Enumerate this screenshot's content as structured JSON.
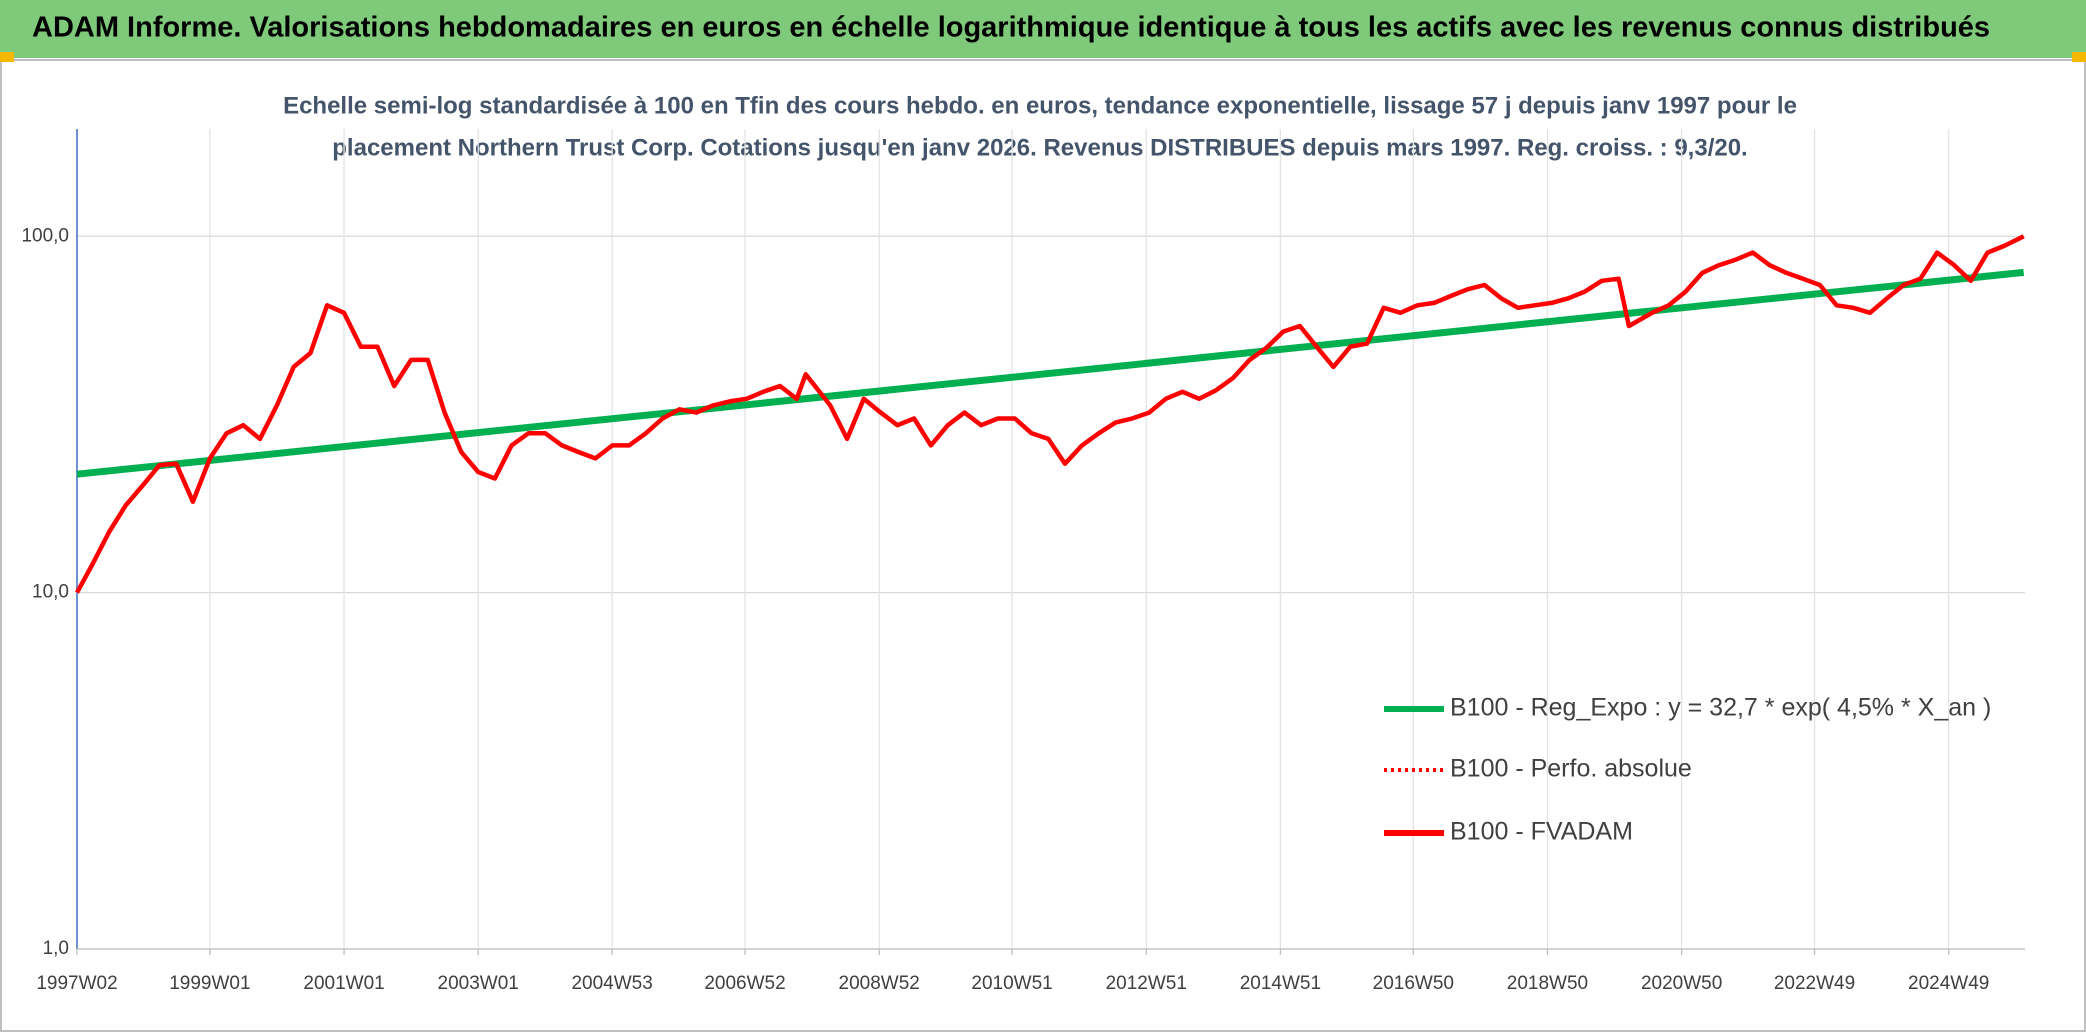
{
  "chart_data": {
    "type": "line",
    "title": "ADAM Informe. Valorisations hebdomadaires en euros en échelle logarithmique identique à tous les actifs avec les revenus connus distribués",
    "subtitle": [
      "Echelle semi-log standardisée à 100 en Tfin des cours hebdo. en euros, tendance exponentielle, lissage 57 j depuis janv 1997 pour le",
      "placement Northern Trust Corp. Cotations jusqu'en janv 2026. Revenus DISTRIBUES depuis mars 1997. Reg. croiss. : 9,3/20."
    ],
    "xlim": [
      "1997W02",
      "2026W04"
    ],
    "xticks": [
      "1997W02",
      "1999W01",
      "2001W01",
      "2003W01",
      "2004W53",
      "2006W52",
      "2008W52",
      "2010W51",
      "2012W51",
      "2014W51",
      "2016W50",
      "2018W50",
      "2020W50",
      "2022W49",
      "2024W49"
    ],
    "ylim": [
      1,
      200
    ],
    "log_y": true,
    "grid": true,
    "yticks": [
      {
        "value": 1,
        "label": "1,0"
      },
      {
        "value": 10,
        "label": "10,0"
      },
      {
        "value": 100,
        "label": "100,0"
      }
    ],
    "legend": "right",
    "series": [
      {
        "name": "B100 - Reg_Expo : y = 32,7 * exp( 4,5% *  X_an )",
        "color": "#00b050",
        "style": "solid",
        "x": [
          "1997W02",
          "2026W03"
        ],
        "values": [
          21.5,
          79.2
        ]
      },
      {
        "name": "B100 - Perfo. absolue",
        "color": "#ff0000",
        "style": "dotted",
        "x": [],
        "values": []
      },
      {
        "name": "B100 - FVADAM",
        "color": "#ff0000",
        "style": "solid",
        "x": [
          "1997W02",
          "1997W14",
          "1997W27",
          "1997W40",
          "1998W01",
          "1998W14",
          "1998W27",
          "1998W40",
          "1999W01",
          "1999W14",
          "1999W27",
          "1999W40",
          "2000W01",
          "2000W14",
          "2000W27",
          "2000W40",
          "2001W01",
          "2001W14",
          "2001W27",
          "2001W40",
          "2002W01",
          "2002W14",
          "2002W27",
          "2002W40",
          "2003W01",
          "2003W14",
          "2003W27",
          "2003W40",
          "2004W01",
          "2004W14",
          "2004W27",
          "2004W40",
          "2005W01",
          "2005W14",
          "2005W27",
          "2005W40",
          "2006W01",
          "2006W14",
          "2006W27",
          "2006W40",
          "2007W01",
          "2007W14",
          "2007W27",
          "2007W40",
          "2007W47",
          "2008W14",
          "2008W27",
          "2008W40",
          "2009W01",
          "2009W14",
          "2009W27",
          "2009W40",
          "2010W01",
          "2010W14",
          "2010W27",
          "2010W40",
          "2011W01",
          "2011W14",
          "2011W27",
          "2011W40",
          "2012W01",
          "2012W14",
          "2012W27",
          "2012W40",
          "2013W01",
          "2013W14",
          "2013W27",
          "2013W40",
          "2014W01",
          "2014W14",
          "2014W27",
          "2014W40",
          "2015W01",
          "2015W14",
          "2015W27",
          "2015W40",
          "2016W01",
          "2016W14",
          "2016W27",
          "2016W40",
          "2017W01",
          "2017W14",
          "2017W27",
          "2017W40",
          "2018W01",
          "2018W14",
          "2018W27",
          "2018W40",
          "2019W01",
          "2019W14",
          "2019W27",
          "2019W40",
          "2020W01",
          "2020W09",
          "2020W27",
          "2020W40",
          "2021W01",
          "2021W14",
          "2021W27",
          "2021W40",
          "2022W01",
          "2022W14",
          "2022W27",
          "2022W40",
          "2023W01",
          "2023W14",
          "2023W27",
          "2023W40",
          "2024W01",
          "2024W14",
          "2024W27",
          "2024W40",
          "2025W01",
          "2025W14",
          "2025W27",
          "2025W40",
          "2026W03"
        ],
        "values": [
          10,
          12,
          14.8,
          17.6,
          20,
          22.8,
          23,
          18,
          23.8,
          28,
          29.5,
          27,
          33.6,
          43,
          47,
          64,
          61,
          49,
          49,
          38,
          45,
          45,
          32,
          24.8,
          21.8,
          20.9,
          25.9,
          28,
          28,
          25.9,
          24.8,
          23.8,
          25.9,
          25.9,
          28,
          30.8,
          32.7,
          32,
          33.5,
          34.4,
          35,
          36.6,
          38,
          35,
          41,
          33.5,
          27,
          35,
          32,
          29.5,
          30.8,
          25.9,
          29.5,
          32,
          29.5,
          30.8,
          30.8,
          28,
          27,
          23,
          25.9,
          28,
          30,
          30.8,
          32,
          35,
          36.6,
          35,
          37,
          40,
          45,
          48.6,
          54,
          56,
          49,
          43,
          49,
          50,
          63,
          61,
          64,
          65,
          68,
          71,
          73,
          67,
          63,
          64,
          65,
          67,
          70,
          75,
          76,
          56,
          61,
          64,
          70,
          79,
          83,
          86,
          90,
          83,
          79,
          76,
          73,
          64,
          63,
          61,
          67,
          73,
          76,
          90,
          83,
          75,
          90,
          94,
          100
        ]
      }
    ]
  }
}
